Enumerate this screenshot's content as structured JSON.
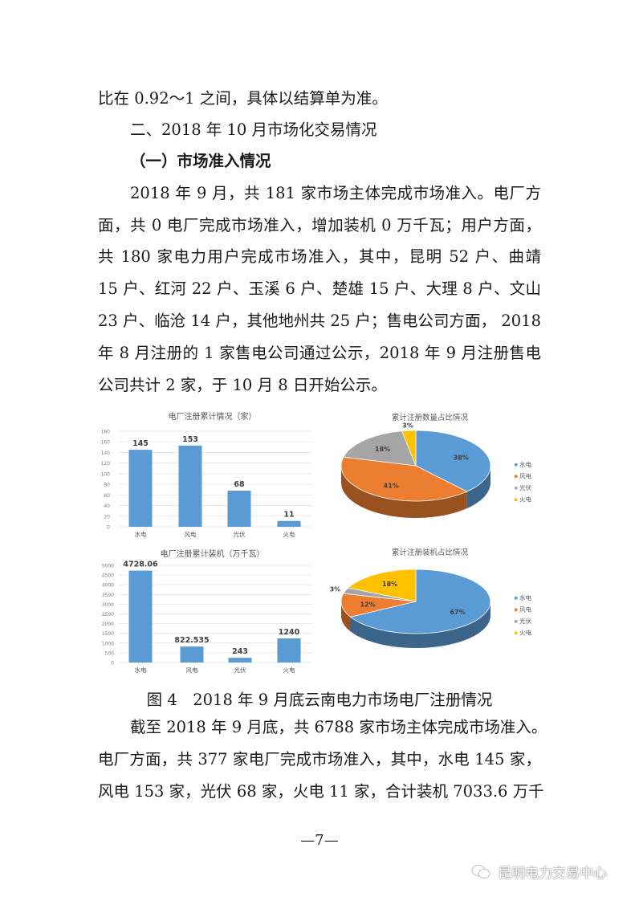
{
  "paragraphs": {
    "p0": [
      "比在 0.92～1 之间，具体以结算单为准。"
    ],
    "heading2": "二、2018 年 10 月市场化交易情况",
    "heading3": "（一）市场准入情况",
    "p1": [
      "2018 年 9 月，共 181 家市场主体完成市场准入。电厂方",
      "面，共 0 电厂完成市场准入，增加装机 0 万千瓦；用户方面，",
      "共 180 家电力用户完成市场准入，其中，昆明 52 户、曲靖",
      "15 户、红河 22 户、玉溪 6 户、楚雄 15 户、大理 8 户、文山",
      "23 户、临沧 14 户，其他地州共 25 户；售电公司方面， 2018",
      "年 8 月注册的 1 家售电公司通过公示，2018 年 9 月注册售电",
      "公司共计 2 家，于 10 月 8 日开始公示。"
    ],
    "p2": [
      "截至 2018 年 9 月底，共 6788 家市场主体完成市场准入。",
      "电厂方面，共 377 家电厂完成市场准入，其中，水电 145 家，",
      "风电 153 家，光伏 68 家，火电 11 家，合计装机 7033.6 万千"
    ]
  },
  "figure_caption": "图 4　2018 年 9 月底云南电力市场电厂注册情况",
  "page_number": "—7—",
  "watermark": {
    "text": "昆明电力交易中心",
    "icon": "wechat-icon"
  },
  "chart_data": [
    {
      "type": "bar",
      "title": "电厂注册累计情况（家）",
      "categories": [
        "水电",
        "风电",
        "光伏",
        "火电"
      ],
      "values": [
        145,
        153,
        68,
        11
      ],
      "data_labels": [
        "145",
        "153",
        "68",
        "11"
      ],
      "ylim": [
        0,
        180
      ],
      "yticks": [
        0,
        20,
        40,
        60,
        80,
        100,
        120,
        140,
        160,
        180
      ],
      "grid": true,
      "color": "#5b9bd5"
    },
    {
      "type": "pie",
      "title": "累计注册数量占比情况",
      "categories": [
        "水电",
        "风电",
        "光伏",
        "火电"
      ],
      "values": [
        38,
        41,
        18,
        3
      ],
      "data_labels": [
        "38%",
        "41%",
        "18%",
        "3%"
      ],
      "colors": [
        "#5b9bd5",
        "#ed7d31",
        "#a5a5a5",
        "#ffc000"
      ],
      "legend": "right",
      "style": "3d"
    },
    {
      "type": "bar",
      "title": "电厂注册累计装机（万千瓦）",
      "categories": [
        "水电",
        "风电",
        "光伏",
        "火电"
      ],
      "values": [
        4728.06,
        822.535,
        243,
        1240
      ],
      "data_labels": [
        "4728.06",
        "822.535",
        "243",
        "1240"
      ],
      "ylim": [
        0,
        5000
      ],
      "yticks": [
        0,
        500,
        1000,
        1500,
        2000,
        2500,
        3000,
        3500,
        4000,
        4500,
        5000
      ],
      "grid": true,
      "color": "#5b9bd5"
    },
    {
      "type": "pie",
      "title": "累计注册装机占比情况",
      "categories": [
        "水电",
        "风电",
        "光伏",
        "火电"
      ],
      "values": [
        67,
        12,
        3,
        18
      ],
      "data_labels": [
        "67%",
        "12%",
        "3%",
        "18%"
      ],
      "colors": [
        "#5b9bd5",
        "#ed7d31",
        "#a5a5a5",
        "#ffc000"
      ],
      "legend": "right",
      "style": "3d"
    }
  ]
}
